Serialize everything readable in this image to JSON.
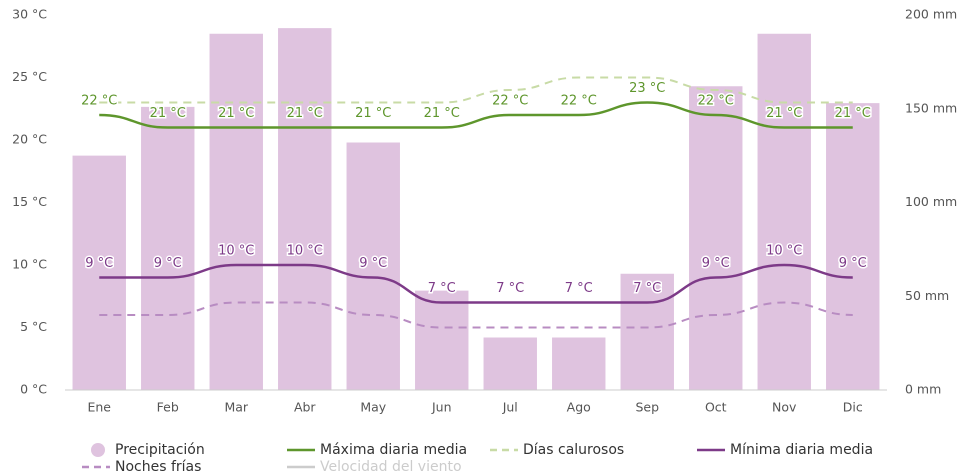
{
  "chart_data": {
    "type": "combo",
    "categories": [
      "Ene",
      "Feb",
      "Mar",
      "Abr",
      "May",
      "Jun",
      "Jul",
      "Ago",
      "Sep",
      "Oct",
      "Nov",
      "Dic"
    ],
    "ylim": [
      0,
      30
    ],
    "yticks": [
      {
        "value": 0,
        "label": "0 °C"
      },
      {
        "value": 5,
        "label": "5 °C"
      },
      {
        "value": 10,
        "label": "10 °C"
      },
      {
        "value": 15,
        "label": "15 °C"
      },
      {
        "value": 20,
        "label": "20 °C"
      },
      {
        "value": 25,
        "label": "25 °C"
      },
      {
        "value": 30,
        "label": "30 °C"
      }
    ],
    "y2lim": [
      0,
      200
    ],
    "y2ticks": [
      {
        "value": 0,
        "label": "0 mm"
      },
      {
        "value": 50,
        "label": "50 mm"
      },
      {
        "value": 100,
        "label": "100 mm"
      },
      {
        "value": 150,
        "label": "150 mm"
      },
      {
        "value": 200,
        "label": "200 mm"
      }
    ],
    "grid": false,
    "series": [
      {
        "name": "Precipitación",
        "type": "bar",
        "axis": "y2",
        "color": "#dfc3df",
        "values": [
          125,
          151,
          190,
          193,
          132,
          53,
          28,
          28,
          62,
          162,
          190,
          153
        ]
      },
      {
        "name": "Máxima diaria media",
        "type": "line",
        "color": "#5e962c",
        "values": [
          22,
          21,
          21,
          21,
          21,
          21,
          22,
          22,
          23,
          22,
          21,
          21
        ],
        "value_labels": [
          "22 °C",
          "21 °C",
          "21 °C",
          "21 °C",
          "21 °C",
          "21 °C",
          "22 °C",
          "22 °C",
          "23 °C",
          "22 °C",
          "21 °C",
          "21 °C"
        ]
      },
      {
        "name": "Días calurosos",
        "type": "line",
        "dashed": true,
        "color": "#c8dba6",
        "values": [
          23,
          23,
          23,
          23,
          23,
          23,
          24,
          25,
          25,
          24,
          23,
          23
        ]
      },
      {
        "name": "Mínima diaria media",
        "type": "line",
        "color": "#7d3a88",
        "values": [
          9,
          9,
          10,
          10,
          9,
          7,
          7,
          7,
          7,
          9,
          10,
          9
        ],
        "value_labels": [
          "9 °C",
          "9 °C",
          "10 °C",
          "10 °C",
          "9 °C",
          "7 °C",
          "7 °C",
          "7 °C",
          "7 °C",
          "9 °C",
          "10 °C",
          "9 °C"
        ]
      },
      {
        "name": "Noches frías",
        "type": "line",
        "dashed": true,
        "color": "#b88cc2",
        "values": [
          6,
          6,
          7,
          7,
          6,
          5,
          5,
          5,
          5,
          6,
          7,
          6
        ]
      },
      {
        "name": "Velocidad del viento",
        "type": "line",
        "visible": false,
        "color": "#cccccc"
      }
    ]
  }
}
